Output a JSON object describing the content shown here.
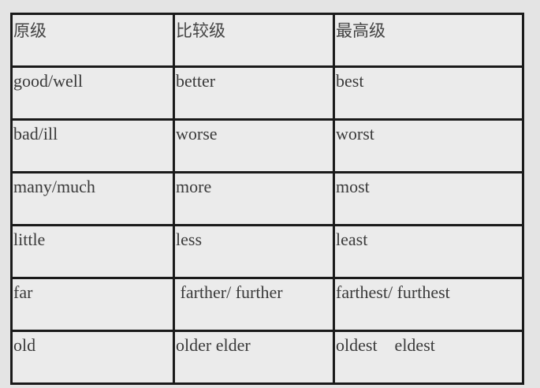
{
  "headers": [
    "原级",
    "比较级",
    "最高级"
  ],
  "rows": [
    [
      "good/well",
      "better",
      "best"
    ],
    [
      "bad/ill",
      "worse",
      "worst"
    ],
    [
      "many/much",
      "more",
      "most"
    ],
    [
      "little",
      "less",
      "least"
    ],
    [
      "far",
      " farther/ further",
      "farthest/ furthest"
    ],
    [
      "old",
      "older elder",
      "oldest    eldest"
    ]
  ]
}
